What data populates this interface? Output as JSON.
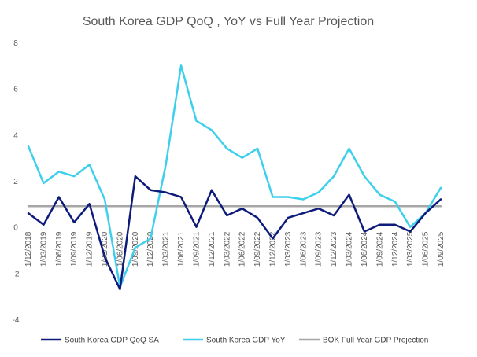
{
  "chart_data": {
    "type": "line",
    "title": "South Korea GDP  QoQ , YoY vs Full Year Projection",
    "xlabel": "",
    "ylabel": "",
    "ylim": [
      -4,
      8
    ],
    "yticks": [
      "-4",
      "-2",
      "0",
      "2",
      "4",
      "6",
      "8"
    ],
    "grid": false,
    "legend_position": "bottom",
    "categories": [
      "1/12/2018",
      "1/03/2019",
      "1/06/2019",
      "1/09/2019",
      "1/12/2019",
      "1/03/2020",
      "1/06/2020",
      "1/09/2020",
      "1/12/2020",
      "1/03/2021",
      "1/06/2021",
      "1/09/2021",
      "1/12/2021",
      "1/03/2022",
      "1/06/2022",
      "1/09/2022",
      "1/12/2022",
      "1/03/2023",
      "1/06/2023",
      "1/09/2023",
      "1/12/2023",
      "1/03/2024",
      "1/06/2024",
      "1/09/2024",
      "1/12/2024",
      "1/03/2025",
      "1/06/2025",
      "1/09/2025"
    ],
    "series": [
      {
        "name": "South Korea GDP QoQ SA",
        "color": "#0d1b7a",
        "values": [
          0.6,
          0.1,
          1.3,
          0.2,
          1.0,
          -1.3,
          -2.7,
          2.2,
          1.6,
          1.5,
          1.3,
          0.0,
          1.6,
          0.5,
          0.8,
          0.4,
          -0.5,
          0.4,
          0.6,
          0.8,
          0.5,
          1.4,
          -0.2,
          0.1,
          0.1,
          -0.2,
          0.6,
          1.2
        ]
      },
      {
        "name": "South Korea GDP YoY",
        "color": "#3ecfec",
        "values": [
          3.5,
          1.9,
          2.4,
          2.2,
          2.7,
          1.2,
          -2.6,
          -0.9,
          -0.5,
          2.7,
          7.0,
          4.6,
          4.2,
          3.4,
          3.0,
          3.4,
          1.3,
          1.3,
          1.2,
          1.5,
          2.2,
          3.4,
          2.2,
          1.4,
          1.1,
          0.0,
          0.6,
          1.7
        ]
      },
      {
        "name": "BOK Full Year GDP Projection",
        "color": "#a6a6a6",
        "values": [
          0.9,
          0.9,
          0.9,
          0.9,
          0.9,
          0.9,
          0.9,
          0.9,
          0.9,
          0.9,
          0.9,
          0.9,
          0.9,
          0.9,
          0.9,
          0.9,
          0.9,
          0.9,
          0.9,
          0.9,
          0.9,
          0.9,
          0.9,
          0.9,
          0.9,
          0.9,
          0.9,
          0.9
        ]
      }
    ]
  }
}
